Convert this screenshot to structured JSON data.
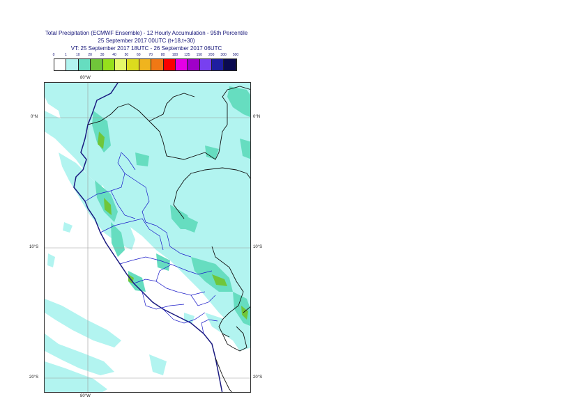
{
  "title": {
    "line1": "Total Precipitation (ECMWF Ensemble) - 12 Hourly Accumulation - 95th Percentile",
    "line2": "25 September 2017 00UTC (t+18,t+30)",
    "line3": "VT: 25 September 2017 18UTC - 26 September 2017 06UTC"
  },
  "legend": {
    "ticks": [
      "0",
      "1",
      "10",
      "20",
      "30",
      "40",
      "50",
      "60",
      "70",
      "80",
      "100",
      "125",
      "150",
      "200",
      "300",
      "500"
    ],
    "colors": [
      "#ffffff",
      "#b2f4f0",
      "#66ddc0",
      "#70c63a",
      "#96e01c",
      "#e6f86a",
      "#dcdc1e",
      "#f0b41e",
      "#f07814",
      "#fa0000",
      "#e600e6",
      "#a000c8",
      "#7840f0",
      "#1e1ea0",
      "#0a0a50"
    ]
  },
  "axes": {
    "top_lon": "80°W",
    "bottom_lon": "80°W",
    "left_lats": [
      "0°N",
      "10°S",
      "20°S"
    ],
    "right_lats": [
      "0°N",
      "10°S",
      "20°S"
    ]
  }
}
